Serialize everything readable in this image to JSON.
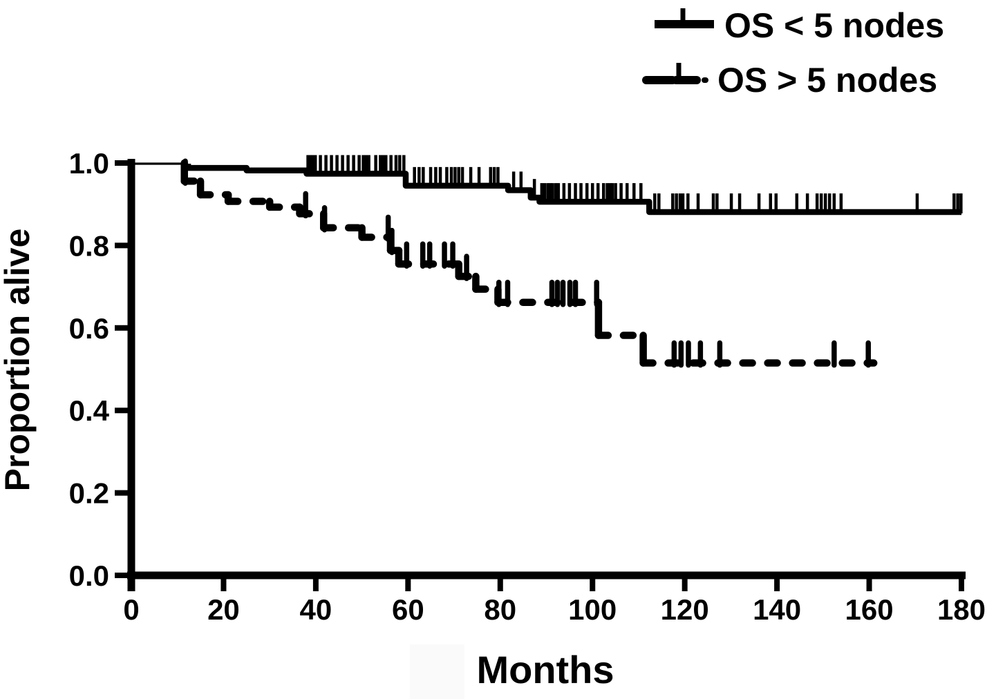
{
  "figure": {
    "background_color": "#ffffff",
    "ink_color": "#000000"
  },
  "chart_data": {
    "type": "line",
    "chart_kind": "kaplan-meier-step",
    "title": "",
    "xlabel": "Months",
    "ylabel": "Proportion alive",
    "xlim": [
      0,
      180
    ],
    "ylim": [
      0.0,
      1.0
    ],
    "grid": false,
    "legend_position": "top-right",
    "xticks": [
      {
        "v": 0,
        "label": "0"
      },
      {
        "v": 20,
        "label": "20"
      },
      {
        "v": 40,
        "label": "40"
      },
      {
        "v": 60,
        "label": "60"
      },
      {
        "v": 80,
        "label": "80"
      },
      {
        "v": 100,
        "label": "100"
      },
      {
        "v": 120,
        "label": "120"
      },
      {
        "v": 140,
        "label": "140"
      },
      {
        "v": 160,
        "label": "160"
      },
      {
        "v": 180,
        "label": "180"
      }
    ],
    "yticks": [
      {
        "v": 0.0,
        "label": "0.0"
      },
      {
        "v": 0.2,
        "label": "0.2"
      },
      {
        "v": 0.4,
        "label": "0.4"
      },
      {
        "v": 0.6,
        "label": "0.6"
      },
      {
        "v": 0.8,
        "label": "0.8"
      },
      {
        "v": 1.0,
        "label": "1.0"
      }
    ],
    "series": [
      {
        "name": "OS < 5 nodes",
        "style": "solid",
        "color": "#000000",
        "steps": [
          [
            0,
            1.0
          ],
          [
            12.3,
            0.988
          ],
          [
            25,
            0.982
          ],
          [
            38,
            0.974
          ],
          [
            59.5,
            0.945
          ],
          [
            81.7,
            0.934
          ],
          [
            86.6,
            0.916
          ],
          [
            88.5,
            0.906
          ],
          [
            112.3,
            0.881
          ]
        ],
        "end_month": 180,
        "censor_months": [
          38.3,
          38.8,
          39.3,
          39.9,
          41.0,
          42.2,
          43.4,
          44.6,
          45.8,
          47.0,
          48.2,
          49.4,
          50.3,
          50.9,
          51.5,
          53.0,
          54.0,
          54.6,
          55.2,
          56.3,
          57.4,
          58.2,
          59.1,
          61.4,
          62.4,
          63.3,
          64.9,
          66.0,
          67.0,
          68.4,
          69.4,
          70.2,
          71.0,
          71.8,
          73.6,
          75.4,
          77.9,
          78.7,
          79.5,
          82.9,
          84.5,
          87.4,
          89.0,
          89.6,
          90.3,
          90.8,
          91.3,
          92.0,
          92.6,
          93.8,
          95.0,
          96.3,
          97.5,
          98.8,
          100.0,
          101.2,
          102.4,
          103.2,
          103.8,
          104.3,
          105.0,
          106.2,
          107.5,
          109.0,
          110.5,
          113.5,
          114.4,
          117.4,
          118.2,
          119.0,
          119.6,
          120.7,
          122.9,
          126.2,
          127.0,
          130.1,
          131.9,
          136.1,
          138.6,
          139.8,
          144.3,
          146.6,
          148.7,
          149.6,
          150.5,
          151.4,
          152.4,
          153.9,
          170.4,
          178.4,
          179.2,
          179.9
        ]
      },
      {
        "name": "OS > 5 nodes",
        "style": "dashed",
        "color": "#000000",
        "steps": [
          [
            0,
            1.0
          ],
          [
            11.5,
            0.956
          ],
          [
            15,
            0.923
          ],
          [
            21,
            0.907
          ],
          [
            30,
            0.893
          ],
          [
            36.5,
            0.877
          ],
          [
            41.7,
            0.843
          ],
          [
            50,
            0.82
          ],
          [
            56.2,
            0.788
          ],
          [
            58,
            0.755
          ],
          [
            71,
            0.725
          ],
          [
            74.7,
            0.694
          ],
          [
            79.5,
            0.662
          ],
          [
            101.3,
            0.582
          ],
          [
            111,
            0.515
          ]
        ],
        "end_month": 161,
        "censor_months": [
          11.7,
          37.8,
          41.9,
          55.7,
          56.5,
          59.7,
          63.2,
          64.7,
          67.9,
          69.7,
          72.7,
          79.7,
          81.6,
          91.2,
          92.4,
          93.6,
          95.1,
          96.3,
          100.9,
          117.7,
          119.2,
          120.8,
          123.4,
          127.6,
          152.4,
          159.8
        ]
      }
    ]
  }
}
